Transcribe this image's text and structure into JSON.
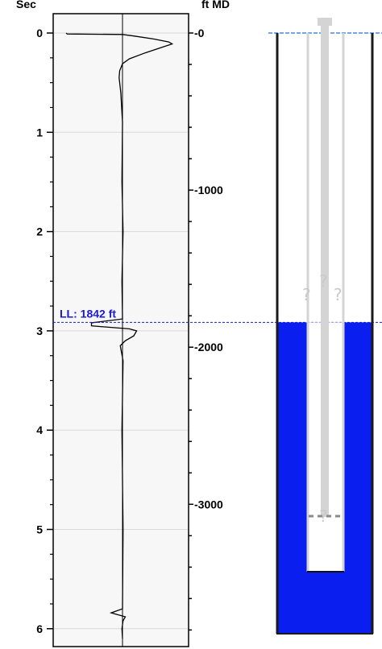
{
  "chart_data": {
    "type": "line",
    "title": "",
    "left_axis": {
      "label": "Sec",
      "min": -0.2,
      "max": 6.15,
      "ticks": [
        0,
        1,
        2,
        3,
        4,
        5,
        6
      ],
      "minor_step": 0.25
    },
    "right_axis": {
      "label": "ft MD",
      "ticks": [
        0,
        1000,
        2000,
        3000
      ],
      "ft_per_sec": 632,
      "minor_step": 200
    },
    "grid": true,
    "series": [
      {
        "values_trace": [
          [
            0.0,
            -1.0
          ],
          [
            0.01,
            -0.98
          ],
          [
            0.015,
            0.0
          ],
          [
            0.03,
            0.2
          ],
          [
            0.06,
            0.55
          ],
          [
            0.09,
            0.82
          ],
          [
            0.11,
            0.88
          ],
          [
            0.14,
            0.72
          ],
          [
            0.2,
            0.4
          ],
          [
            0.26,
            0.12
          ],
          [
            0.31,
            0.0
          ],
          [
            0.38,
            -0.05
          ],
          [
            0.45,
            -0.06
          ],
          [
            0.6,
            -0.03
          ],
          [
            0.9,
            0.0
          ],
          [
            1.5,
            -0.01
          ],
          [
            2.0,
            0.01
          ],
          [
            2.5,
            -0.01
          ],
          [
            2.88,
            0.0
          ],
          [
            2.92,
            -0.55
          ],
          [
            2.95,
            -0.55
          ],
          [
            2.98,
            0.12
          ],
          [
            3.0,
            0.25
          ],
          [
            3.05,
            0.2
          ],
          [
            3.1,
            0.05
          ],
          [
            3.15,
            -0.04
          ],
          [
            3.3,
            0.01
          ],
          [
            4.0,
            -0.01
          ],
          [
            5.0,
            0.01
          ],
          [
            5.8,
            0.0
          ],
          [
            5.84,
            -0.2
          ],
          [
            5.88,
            0.05
          ],
          [
            5.92,
            0.01
          ],
          [
            6.0,
            -0.01
          ],
          [
            6.1,
            0.0
          ]
        ]
      }
    ],
    "liquid_level": {
      "label": "LL: 1842 ft",
      "depth_ft": 1842
    }
  },
  "wellbore": {
    "fluid_color": "#0a1ef0",
    "unknown_marks": [
      "?",
      "?",
      "?",
      "?"
    ]
  }
}
